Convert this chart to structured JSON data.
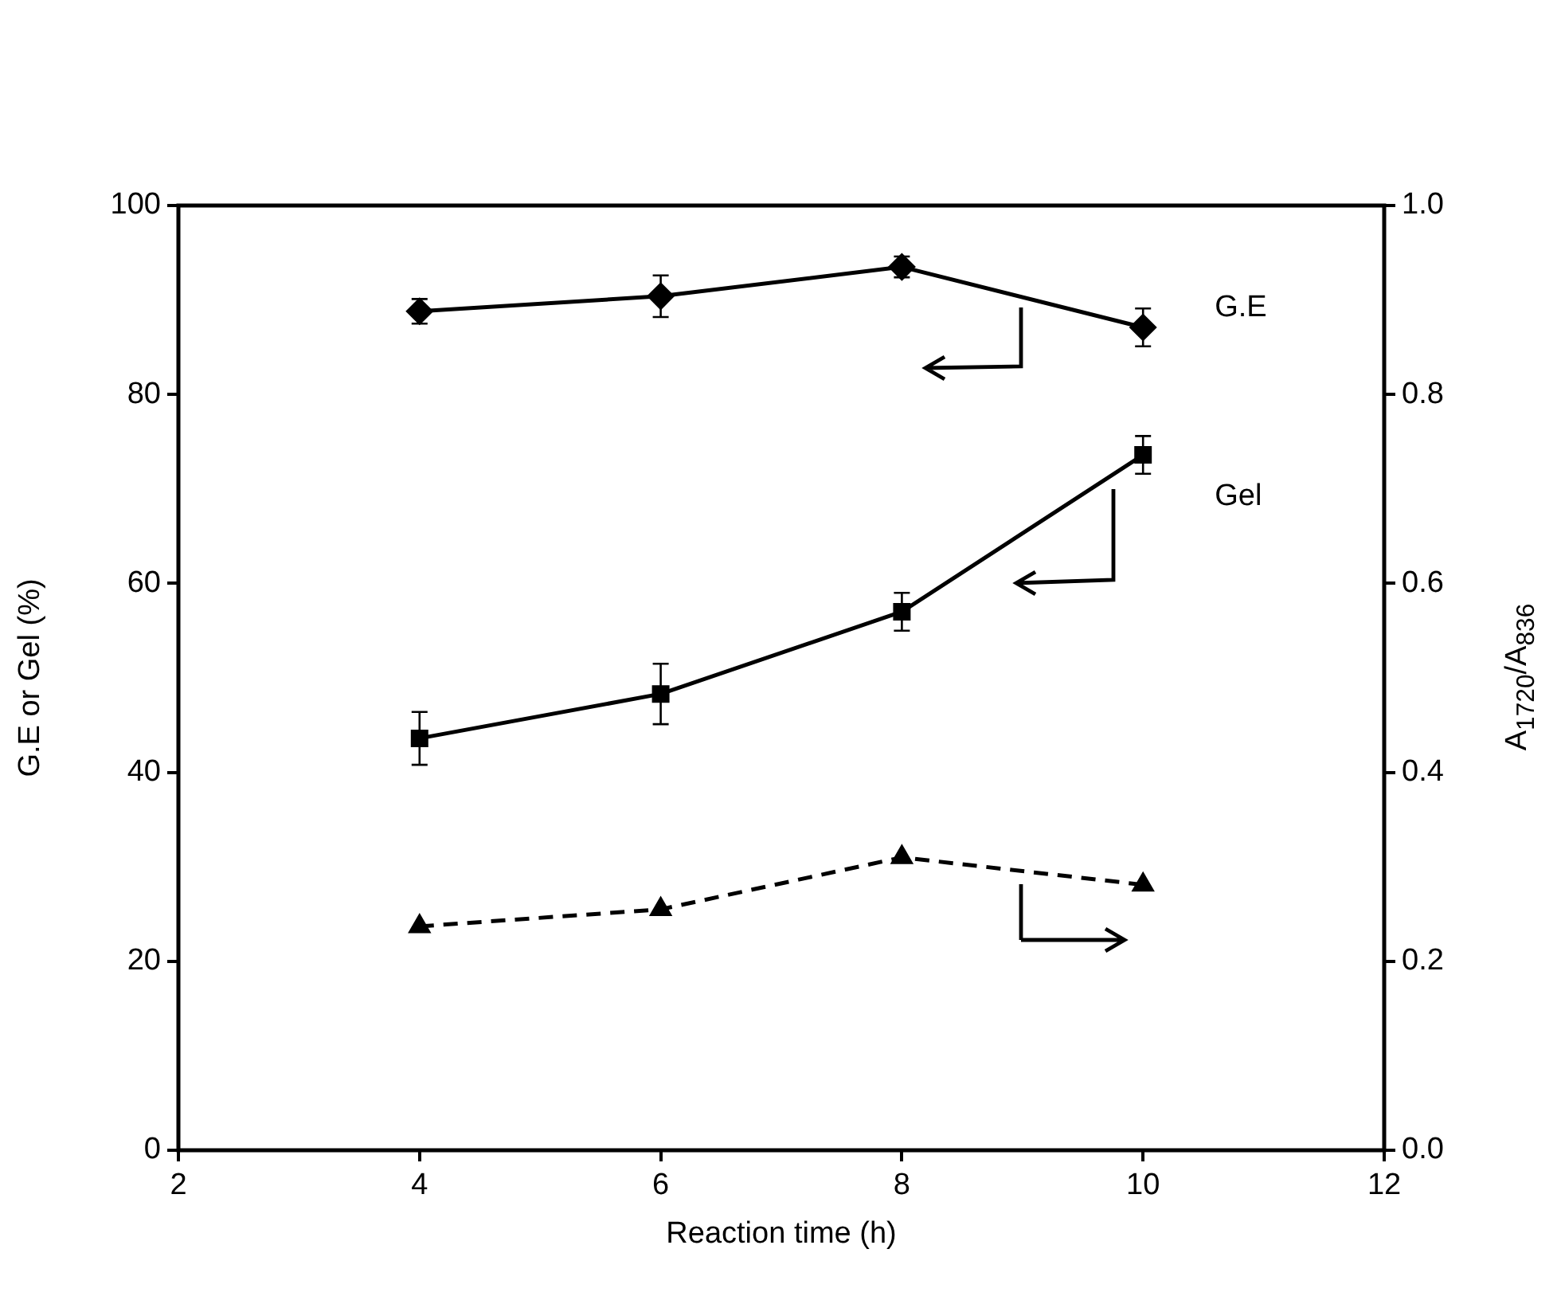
{
  "chart_data": {
    "type": "line",
    "xlabel": "Reaction time (h)",
    "ylabel": "G.E or Gel (%)",
    "y2label": "A$_{1720}$/A$_{836}$",
    "x": [
      4,
      6,
      8,
      10
    ],
    "series": [
      {
        "name": "G.E",
        "color": "#000000",
        "values": [
          88.8,
          90.4,
          93.5,
          87.1
        ],
        "errors": [
          1.3,
          2.2,
          1.1,
          2.0
        ],
        "marker": "diamond",
        "line_style": "solid"
      },
      {
        "name": "Gel",
        "color": "#000000",
        "values": [
          43.6,
          48.3,
          57.0,
          73.6
        ],
        "errors": [
          2.8,
          3.2,
          2.0,
          2.0
        ],
        "marker": "square",
        "line_style": "solid"
      },
      {
        "color": "#000000",
        "values": [
          0.237,
          0.255,
          0.31,
          0.281
        ],
        "axis": "y2",
        "marker": "triangle",
        "line_style": "dashed"
      }
    ],
    "xlim": [
      2,
      12
    ],
    "xticks": [
      2,
      4,
      6,
      8,
      10,
      12
    ],
    "ylim": [
      0,
      100
    ],
    "yticks": [
      0,
      20,
      40,
      60,
      80,
      100
    ],
    "y2lim": [
      0,
      1
    ],
    "y2ticks": [
      {
        "value": 0,
        "label": "0.0"
      },
      {
        "value": 0.2,
        "label": "0.2"
      },
      {
        "value": 0.4,
        "label": "0.4"
      },
      {
        "value": 0.6,
        "label": "0.6"
      },
      {
        "value": 0.8,
        "label": "0.8"
      },
      {
        "value": 1,
        "label": "1.0"
      }
    ],
    "grid": false,
    "legend": false
  }
}
